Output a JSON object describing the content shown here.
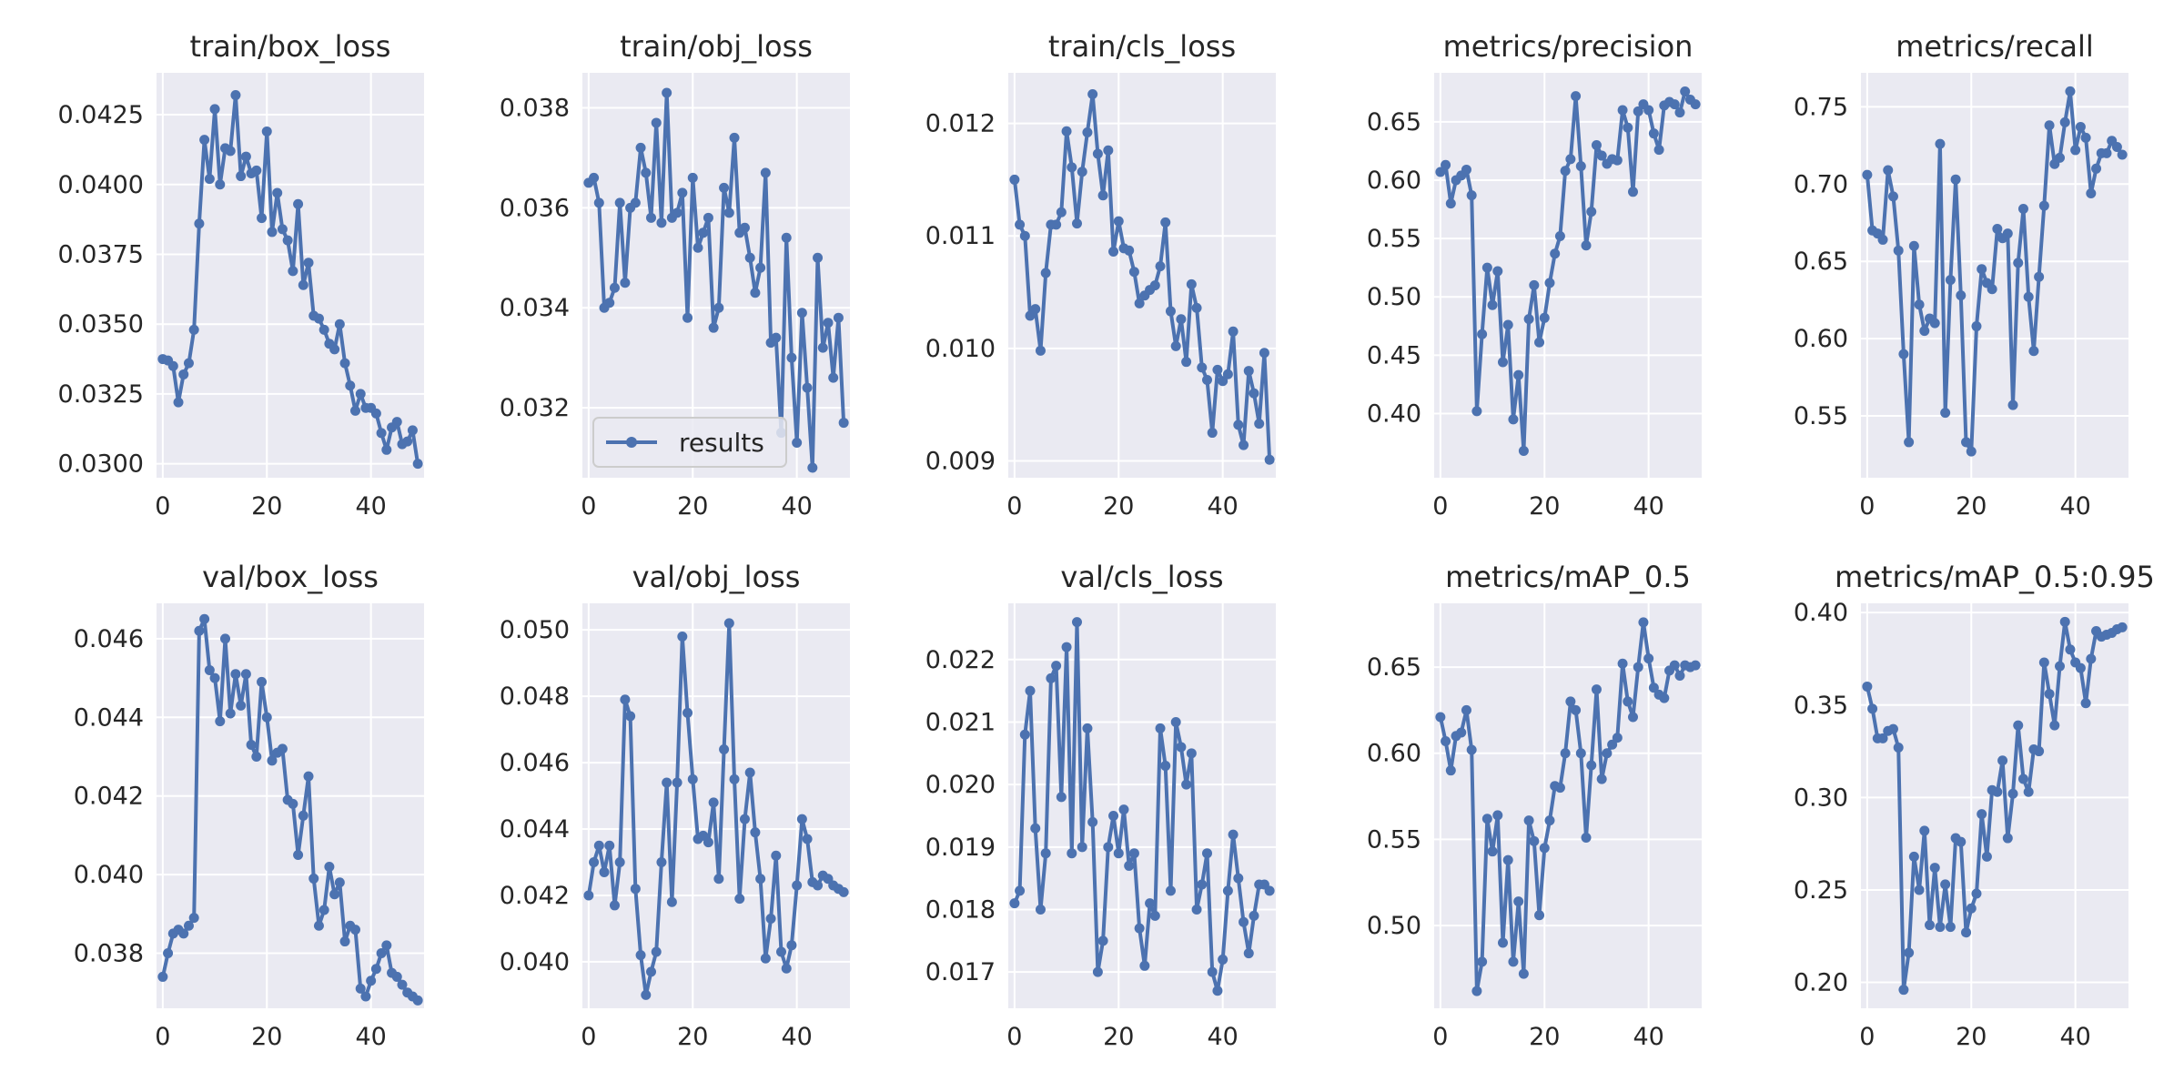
{
  "colors": {
    "line": "#4c72b0",
    "axes_bg": "#eaeaf2",
    "grid": "#ffffff",
    "text": "#262626"
  },
  "chart_data": [
    {
      "type": "line",
      "title": "train/box_loss",
      "ylim": [
        0.0295,
        0.044
      ],
      "xlim": [
        -1.2,
        50.2
      ],
      "yticks": [
        "0.0300",
        "0.0325",
        "0.0350",
        "0.0375",
        "0.0400",
        "0.0425"
      ],
      "xticks": [
        "0",
        "20",
        "40"
      ],
      "grid": true,
      "series": [
        {
          "values": [
            0.03375,
            0.0337,
            0.0335,
            0.0322,
            0.0332,
            0.0336,
            0.0348,
            0.0386,
            0.0416,
            0.0402,
            0.0427,
            0.04,
            0.0413,
            0.0412,
            0.0432,
            0.0403,
            0.041,
            0.0404,
            0.0405,
            0.0388,
            0.0419,
            0.0383,
            0.0397,
            0.0384,
            0.038,
            0.0369,
            0.0393,
            0.0364,
            0.0372,
            0.0353,
            0.0352,
            0.0348,
            0.0343,
            0.0341,
            0.035,
            0.0336,
            0.0328,
            0.0319,
            0.0325,
            0.032,
            0.032,
            0.0318,
            0.0311,
            0.0305,
            0.0313,
            0.0315,
            0.0307,
            0.0308,
            0.0312,
            0.03
          ]
        }
      ]
    },
    {
      "type": "line",
      "title": "train/obj_loss",
      "ylim": [
        0.0306,
        0.0387
      ],
      "xlim": [
        -1.2,
        50.2
      ],
      "yticks": [
        "0.032",
        "0.034",
        "0.036",
        "0.038"
      ],
      "xticks": [
        "0",
        "20",
        "40"
      ],
      "grid": true,
      "legend": {
        "placement": "lower-left",
        "entries": [
          "results"
        ]
      },
      "series": [
        {
          "name": "results",
          "values": [
            0.0365,
            0.0366,
            0.0361,
            0.034,
            0.0341,
            0.0344,
            0.0361,
            0.0345,
            0.036,
            0.0361,
            0.0372,
            0.0367,
            0.0358,
            0.0377,
            0.0357,
            0.0383,
            0.0358,
            0.0359,
            0.0363,
            0.0338,
            0.0366,
            0.0352,
            0.0355,
            0.0358,
            0.0336,
            0.034,
            0.0364,
            0.0359,
            0.0374,
            0.0355,
            0.0356,
            0.035,
            0.0343,
            0.0348,
            0.0367,
            0.0333,
            0.0334,
            0.0315,
            0.0354,
            0.033,
            0.0313,
            0.0339,
            0.0324,
            0.0308,
            0.035,
            0.0332,
            0.0337,
            0.0326,
            0.0338,
            0.0317
          ]
        }
      ]
    },
    {
      "type": "line",
      "title": "train/cls_loss",
      "ylim": [
        0.00885,
        0.01245
      ],
      "xlim": [
        -1.2,
        50.2
      ],
      "yticks": [
        "0.009",
        "0.010",
        "0.011",
        "0.012"
      ],
      "xticks": [
        "0",
        "20",
        "40"
      ],
      "grid": true,
      "series": [
        {
          "values": [
            0.0115,
            0.0111,
            0.011,
            0.01029,
            0.01035,
            0.00998,
            0.01067,
            0.0111,
            0.0111,
            0.01121,
            0.01193,
            0.01161,
            0.01111,
            0.01157,
            0.01192,
            0.01226,
            0.01173,
            0.01136,
            0.01176,
            0.01086,
            0.01113,
            0.01089,
            0.01087,
            0.01068,
            0.0104,
            0.01047,
            0.01052,
            0.01056,
            0.01073,
            0.01112,
            0.01033,
            0.01002,
            0.01026,
            0.00988,
            0.01057,
            0.01036,
            0.00983,
            0.00972,
            0.00925,
            0.00981,
            0.00971,
            0.00977,
            0.01015,
            0.00932,
            0.00914,
            0.0098,
            0.0096,
            0.00933,
            0.00996,
            0.00901
          ]
        }
      ]
    },
    {
      "type": "line",
      "title": "metrics/precision",
      "ylim": [
        0.345,
        0.692
      ],
      "xlim": [
        -1.2,
        50.2
      ],
      "yticks": [
        "0.40",
        "0.45",
        "0.50",
        "0.55",
        "0.60",
        "0.65"
      ],
      "xticks": [
        "0",
        "20",
        "40"
      ],
      "grid": true,
      "series": [
        {
          "values": [
            0.607,
            0.613,
            0.58,
            0.6,
            0.604,
            0.609,
            0.587,
            0.402,
            0.468,
            0.525,
            0.493,
            0.522,
            0.444,
            0.476,
            0.395,
            0.433,
            0.368,
            0.481,
            0.51,
            0.461,
            0.482,
            0.512,
            0.537,
            0.552,
            0.608,
            0.618,
            0.672,
            0.612,
            0.544,
            0.573,
            0.63,
            0.621,
            0.614,
            0.618,
            0.617,
            0.66,
            0.645,
            0.59,
            0.659,
            0.665,
            0.66,
            0.64,
            0.626,
            0.664,
            0.667,
            0.665,
            0.658,
            0.676,
            0.669,
            0.665
          ]
        }
      ]
    },
    {
      "type": "line",
      "title": "metrics/recall",
      "ylim": [
        0.51,
        0.772
      ],
      "xlim": [
        -1.2,
        50.2
      ],
      "yticks": [
        "0.55",
        "0.60",
        "0.65",
        "0.70",
        "0.75"
      ],
      "xticks": [
        "0",
        "20",
        "40"
      ],
      "grid": true,
      "series": [
        {
          "values": [
            0.706,
            0.67,
            0.668,
            0.664,
            0.709,
            0.692,
            0.657,
            0.59,
            0.533,
            0.66,
            0.622,
            0.605,
            0.613,
            0.61,
            0.726,
            0.552,
            0.638,
            0.703,
            0.628,
            0.533,
            0.527,
            0.608,
            0.645,
            0.636,
            0.632,
            0.671,
            0.665,
            0.668,
            0.557,
            0.649,
            0.684,
            0.627,
            0.592,
            0.64,
            0.686,
            0.738,
            0.713,
            0.717,
            0.74,
            0.76,
            0.722,
            0.737,
            0.73,
            0.694,
            0.71,
            0.72,
            0.72,
            0.728,
            0.724,
            0.719
          ]
        }
      ]
    },
    {
      "type": "line",
      "title": "val/box_loss",
      "ylim": [
        0.0366,
        0.0469
      ],
      "xlim": [
        -1.2,
        50.2
      ],
      "yticks": [
        "0.038",
        "0.040",
        "0.042",
        "0.044",
        "0.046"
      ],
      "xticks": [
        "0",
        "20",
        "40"
      ],
      "grid": true,
      "series": [
        {
          "values": [
            0.0374,
            0.038,
            0.0385,
            0.0386,
            0.0385,
            0.0387,
            0.0389,
            0.0462,
            0.0465,
            0.0452,
            0.045,
            0.0439,
            0.046,
            0.0441,
            0.0451,
            0.0443,
            0.0451,
            0.0433,
            0.043,
            0.0449,
            0.044,
            0.0429,
            0.0431,
            0.0432,
            0.0419,
            0.0418,
            0.0405,
            0.0415,
            0.0425,
            0.0399,
            0.0387,
            0.0391,
            0.0402,
            0.0395,
            0.0398,
            0.0383,
            0.0387,
            0.0386,
            0.0371,
            0.0369,
            0.0373,
            0.0376,
            0.038,
            0.0382,
            0.0375,
            0.0374,
            0.0372,
            0.037,
            0.0369,
            0.0368
          ]
        }
      ]
    },
    {
      "type": "line",
      "title": "val/obj_loss",
      "ylim": [
        0.0386,
        0.0508
      ],
      "xlim": [
        -1.2,
        50.2
      ],
      "yticks": [
        "0.040",
        "0.042",
        "0.044",
        "0.046",
        "0.048",
        "0.050"
      ],
      "xticks": [
        "0",
        "20",
        "40"
      ],
      "grid": true,
      "series": [
        {
          "values": [
            0.042,
            0.043,
            0.0435,
            0.0427,
            0.0435,
            0.0417,
            0.043,
            0.0479,
            0.0474,
            0.0422,
            0.0402,
            0.039,
            0.0397,
            0.0403,
            0.043,
            0.0454,
            0.0418,
            0.0454,
            0.0498,
            0.0475,
            0.0455,
            0.0437,
            0.0438,
            0.0436,
            0.0448,
            0.0425,
            0.0464,
            0.0502,
            0.0455,
            0.0419,
            0.0443,
            0.0457,
            0.0439,
            0.0425,
            0.0401,
            0.0413,
            0.0432,
            0.0403,
            0.0398,
            0.0405,
            0.0423,
            0.0443,
            0.0437,
            0.0424,
            0.0423,
            0.0426,
            0.0425,
            0.0423,
            0.0422,
            0.0421
          ]
        }
      ]
    },
    {
      "type": "line",
      "title": "val/cls_loss",
      "ylim": [
        0.01642,
        0.0229
      ],
      "xlim": [
        -1.2,
        50.2
      ],
      "yticks": [
        "0.017",
        "0.018",
        "0.019",
        "0.020",
        "0.021",
        "0.022"
      ],
      "xticks": [
        "0",
        "20",
        "40"
      ],
      "grid": true,
      "series": [
        {
          "values": [
            0.0181,
            0.0183,
            0.0208,
            0.0215,
            0.0193,
            0.018,
            0.0189,
            0.0217,
            0.0219,
            0.0198,
            0.0222,
            0.0189,
            0.0226,
            0.019,
            0.0209,
            0.0194,
            0.017,
            0.0175,
            0.019,
            0.0195,
            0.0189,
            0.0196,
            0.0187,
            0.0189,
            0.0177,
            0.0171,
            0.0181,
            0.0179,
            0.0209,
            0.0203,
            0.0183,
            0.021,
            0.0206,
            0.02,
            0.0205,
            0.018,
            0.0184,
            0.0189,
            0.017,
            0.0167,
            0.0172,
            0.0183,
            0.0192,
            0.0185,
            0.0178,
            0.0173,
            0.0179,
            0.0184,
            0.0184,
            0.0183
          ]
        }
      ]
    },
    {
      "type": "line",
      "title": "metrics/mAP_0.5",
      "ylim": [
        0.452,
        0.687
      ],
      "xlim": [
        -1.2,
        50.2
      ],
      "yticks": [
        "0.50",
        "0.55",
        "0.60",
        "0.65"
      ],
      "xticks": [
        "0",
        "20",
        "40"
      ],
      "grid": true,
      "series": [
        {
          "values": [
            0.621,
            0.607,
            0.59,
            0.61,
            0.612,
            0.625,
            0.602,
            0.462,
            0.479,
            0.562,
            0.543,
            0.564,
            0.49,
            0.538,
            0.479,
            0.514,
            0.472,
            0.561,
            0.549,
            0.506,
            0.545,
            0.561,
            0.581,
            0.58,
            0.6,
            0.63,
            0.625,
            0.6,
            0.551,
            0.593,
            0.637,
            0.585,
            0.6,
            0.605,
            0.609,
            0.652,
            0.63,
            0.621,
            0.65,
            0.676,
            0.655,
            0.638,
            0.634,
            0.632,
            0.648,
            0.651,
            0.645,
            0.651,
            0.65,
            0.651
          ]
        }
      ]
    },
    {
      "type": "line",
      "title": "metrics/mAP_0.5:0.95",
      "ylim": [
        0.186,
        0.405
      ],
      "xlim": [
        -1.2,
        50.2
      ],
      "yticks": [
        "0.20",
        "0.25",
        "0.30",
        "0.35",
        "0.40"
      ],
      "xticks": [
        "0",
        "20",
        "40"
      ],
      "grid": true,
      "series": [
        {
          "values": [
            0.36,
            0.348,
            0.332,
            0.332,
            0.336,
            0.337,
            0.327,
            0.196,
            0.216,
            0.268,
            0.25,
            0.282,
            0.231,
            0.262,
            0.23,
            0.253,
            0.23,
            0.278,
            0.276,
            0.227,
            0.24,
            0.248,
            0.291,
            0.268,
            0.304,
            0.303,
            0.32,
            0.278,
            0.302,
            0.339,
            0.31,
            0.303,
            0.326,
            0.325,
            0.373,
            0.356,
            0.339,
            0.371,
            0.395,
            0.38,
            0.373,
            0.37,
            0.351,
            0.375,
            0.39,
            0.387,
            0.388,
            0.389,
            0.391,
            0.392
          ]
        }
      ]
    }
  ]
}
